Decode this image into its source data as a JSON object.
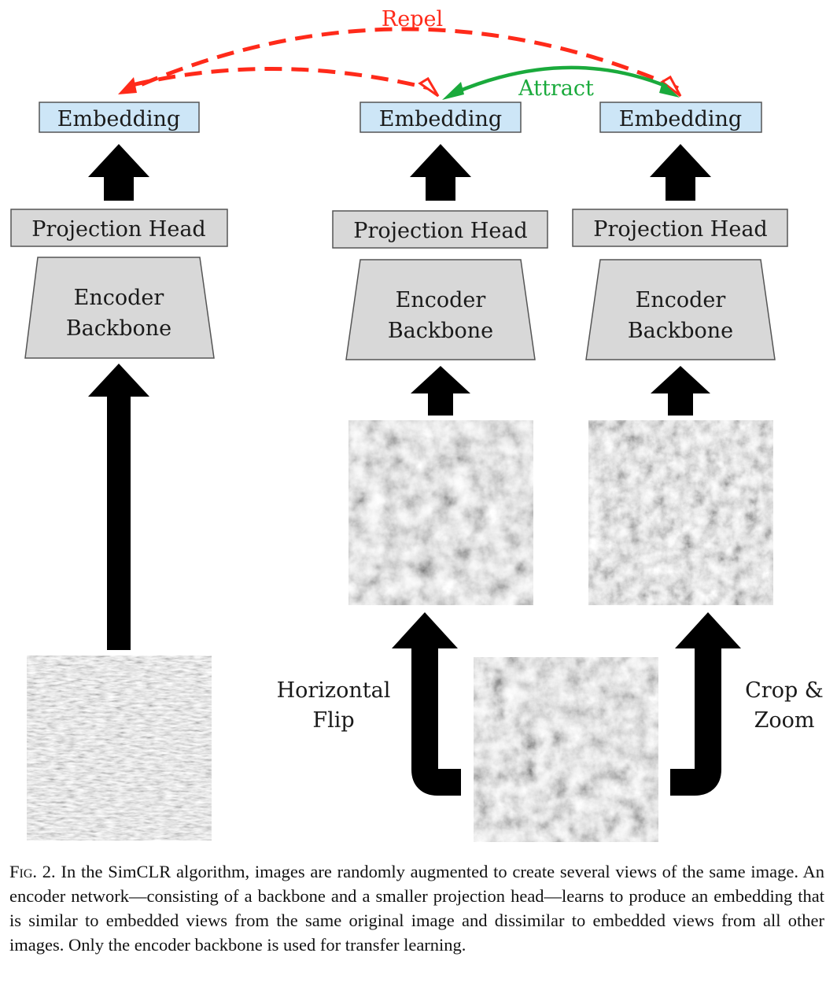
{
  "labels": {
    "embedding": "Embedding",
    "projection_head": "Projection Head",
    "encoder_line1": "Encoder",
    "encoder_line2": "Backbone",
    "repel": "Repel",
    "attract": "Attract",
    "flip_line1": "Horizontal",
    "flip_line2": "Flip",
    "crop_line1": "Crop &",
    "crop_line2": "Zoom"
  },
  "colors": {
    "embedding_fill": "#cde6f7",
    "block_fill": "#d8d8d8",
    "repel": "#ff2a1a",
    "attract": "#1aaa3c",
    "arrow": "#000000"
  },
  "caption": {
    "fig_label": "Fig. 2.",
    "text": "In the SimCLR algorithm, images are randomly augmented to create several views of the same image. An encoder network—consisting of a backbone and a smaller projection head—learns to produce an embedding that is similar to embedded views from the same original image and dissimilar to embedded views from all other images. Only the encoder backbone is used for transfer learning."
  }
}
